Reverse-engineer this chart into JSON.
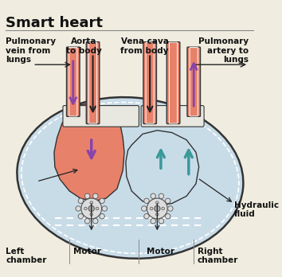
{
  "title": "Smart heart",
  "bg_color": "#f0ede0",
  "heart_outer_color": "#c8dce8",
  "heart_outer_border": "#333333",
  "blood_color": "#e8816a",
  "blood_border": "#333333",
  "teal_color": "#5ab8b8",
  "white_color": "#ffffff",
  "gray_color": "#aaaaaa",
  "purple_arrow_color": "#8844aa",
  "teal_arrow_color": "#3a9999",
  "black_arrow_color": "#222222",
  "labels": {
    "pulm_vein": "Pulmonary\nvein from\nlungs",
    "aorta": "Aorta\nto body",
    "vena_cava": "Vena cava\nfrom body",
    "pulm_artery": "Pulmonary\nartery to\nlungs",
    "left_chamber": "Left\nchamber",
    "motor_left": "Motor",
    "motor_right": "Motor",
    "right_chamber": "Right\nchamber",
    "hydraulic": "Hydraulic\nfluid"
  },
  "label_fontsize": 7.5,
  "title_fontsize": 13
}
